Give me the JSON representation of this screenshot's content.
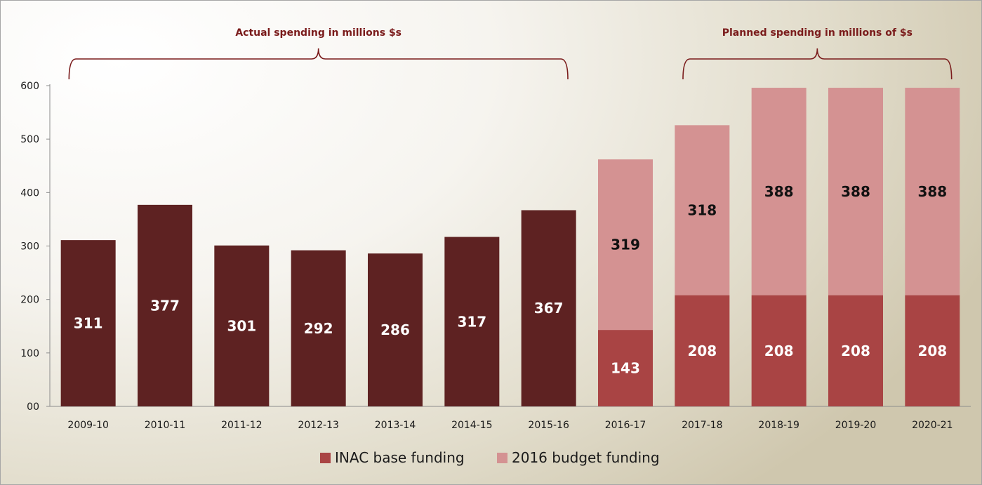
{
  "chart_data": {
    "type": "bar",
    "stacked": true,
    "categories": [
      "2009-10",
      "2010-11",
      "2011-12",
      "2012-13",
      "2013-14",
      "2014-15",
      "2015-16",
      "2016-17",
      "2017-18",
      "2018-19",
      "2019-20",
      "2020-21"
    ],
    "series": [
      {
        "name": "",
        "color": "#5e2222",
        "values": [
          311,
          377,
          301,
          292,
          286,
          317,
          367,
          null,
          null,
          null,
          null,
          null
        ]
      },
      {
        "name": "INAC base funding",
        "color": "#a94444",
        "values": [
          null,
          null,
          null,
          null,
          null,
          null,
          null,
          143,
          208,
          208,
          208,
          208
        ]
      },
      {
        "name": "2016 budget funding",
        "color": "#d49292",
        "values": [
          null,
          null,
          null,
          null,
          null,
          null,
          null,
          319,
          318,
          388,
          388,
          388
        ]
      }
    ],
    "y_ticks": [
      "00",
      "100",
      "200",
      "300",
      "400",
      "500",
      "600"
    ],
    "ylim": [
      0,
      600
    ],
    "annotations": [
      {
        "text": "Actual spending in millions $s",
        "from": "2009-10",
        "to": "2015-16"
      },
      {
        "text": "Planned spending in millions of $s",
        "from": "2017-18",
        "to": "2020-21"
      }
    ],
    "legend": {
      "position": "bottom",
      "items": [
        "INAC base funding",
        "2016 budget funding"
      ]
    },
    "grid": false,
    "title": "",
    "xlabel": "",
    "ylabel": ""
  }
}
